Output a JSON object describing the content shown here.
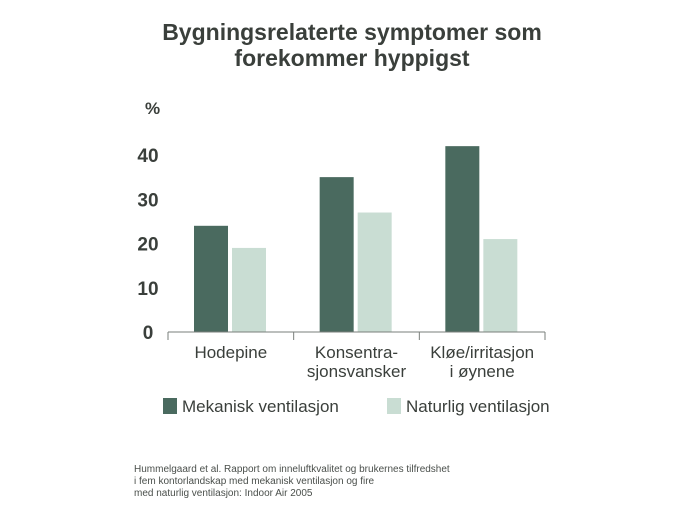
{
  "chart_data": {
    "type": "bar",
    "title_lines": [
      "Bygningsrelaterte symptomer som",
      "forekommer hyppigst"
    ],
    "ylabel": "%",
    "ylim": [
      0,
      40
    ],
    "yticks": [
      "0",
      "10",
      "20",
      "30",
      "40"
    ],
    "categories": [
      [
        "Hodepine"
      ],
      [
        "Konsentra-",
        "sjonsvansker"
      ],
      [
        "Kløe/irritasjon",
        "i øynene"
      ]
    ],
    "series": [
      {
        "name": "Mekanisk ventilasjon",
        "color": "#4a6a5f",
        "values": [
          24,
          35,
          42
        ]
      },
      {
        "name": "Naturlig ventilasjon",
        "color": "#c9ddd3",
        "values": [
          19,
          27,
          21
        ]
      }
    ],
    "source_lines": [
      "Hummelgaard et al. Rapport om inneluftkvalitet og brukernes tilfredshet",
      "i fem kontorlandskap med mekanisk ventilasjon og fire",
      "med naturlig ventilasjon: Indoor Air 2005"
    ]
  }
}
